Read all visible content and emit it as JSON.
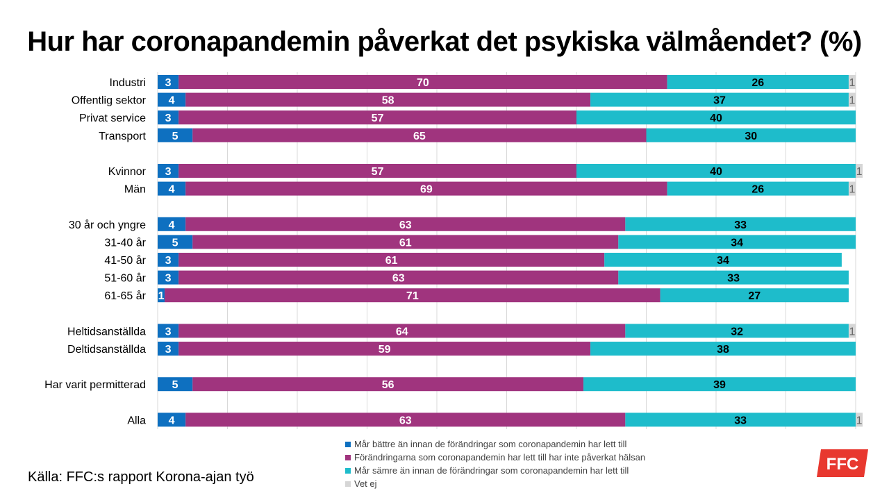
{
  "chart_data": {
    "type": "bar",
    "stacked": true,
    "orientation": "horizontal",
    "title": "Hur har coronapandemin påverkat det psykiska välmåendet? (%)",
    "xlim": [
      0,
      100
    ],
    "groups": [
      [
        "Industri",
        "Offentlig sektor",
        "Privat service",
        "Transport"
      ],
      [
        "Kvinnor",
        "Män"
      ],
      [
        "30 år och yngre",
        "31-40 år",
        "41-50 år",
        "51-60 år",
        "61-65 år"
      ],
      [
        "Heltidsanställda",
        "Deltidsanställda"
      ],
      [
        "Har varit permitterad"
      ],
      [
        "Alla"
      ]
    ],
    "categories": [
      "Industri",
      "Offentlig sektor",
      "Privat service",
      "Transport",
      "Kvinnor",
      "Män",
      "30 år och yngre",
      "31-40 år",
      "41-50 år",
      "51-60 år",
      "61-65 år",
      "Heltidsanställda",
      "Deltidsanställda",
      "Har varit permitterad",
      "Alla"
    ],
    "series": [
      {
        "name": "Mår bättre än innan de förändringar som coronapandemin har lett till",
        "color": "#0e70c0",
        "label_color": "#ffffff",
        "values": [
          3,
          4,
          3,
          5,
          3,
          4,
          4,
          5,
          3,
          3,
          1,
          3,
          3,
          5,
          4
        ]
      },
      {
        "name": "Förändringarna som coronapandemin har lett till har inte påverkat hälsan",
        "color": "#a0347e",
        "label_color": "#ffffff",
        "values": [
          70,
          58,
          57,
          65,
          57,
          69,
          63,
          61,
          61,
          63,
          71,
          64,
          59,
          56,
          63
        ]
      },
      {
        "name": "Mår sämre än innan de förändringar som coronapandemin har lett till",
        "color": "#1ebccb",
        "label_color": "#000000",
        "values": [
          26,
          37,
          40,
          30,
          40,
          26,
          33,
          34,
          34,
          33,
          27,
          32,
          38,
          39,
          33
        ]
      },
      {
        "name": "Vet ej",
        "color": "#d6d6d6",
        "label_color": "#666666",
        "values": [
          1,
          1,
          0,
          0,
          1,
          1,
          0,
          0,
          0,
          0,
          0,
          1,
          0,
          0,
          1
        ]
      }
    ]
  },
  "source": "Källa: FFC:s rapport Korona-ajan työ",
  "logo": {
    "text": "FFC",
    "color": "#e8382f"
  }
}
